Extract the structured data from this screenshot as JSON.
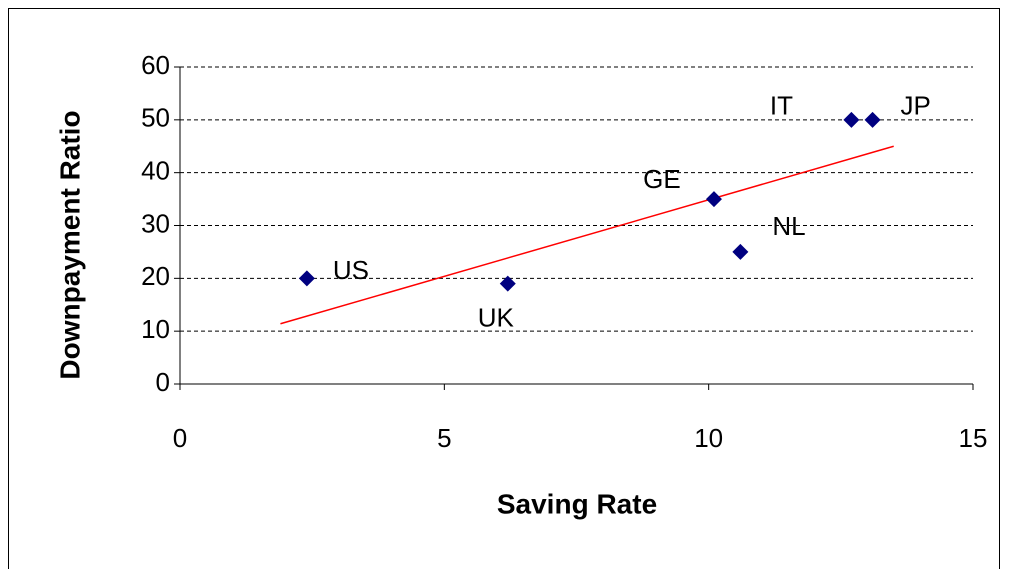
{
  "chart_data": {
    "type": "scatter",
    "xlabel": "Saving Rate",
    "ylabel": "Downpayment Ratio",
    "series": [
      {
        "color": "#000080",
        "labels": [
          "US",
          "UK",
          "GE",
          "NL",
          "IT",
          "JP"
        ],
        "x": [
          2.4,
          6.2,
          10.1,
          10.6,
          12.7,
          13.1
        ],
        "values": [
          20,
          19,
          35,
          25,
          50,
          50
        ]
      }
    ],
    "trendline": {
      "color": "#ff0000",
      "x": [
        1.9,
        13.5
      ],
      "values": [
        11.4,
        45
      ]
    },
    "xlim": [
      0,
      15
    ],
    "xticks": [
      0,
      5,
      10,
      15
    ],
    "ylim": [
      0,
      60
    ],
    "yticks": [
      0,
      10,
      20,
      30,
      40,
      50,
      60
    ],
    "grid": true
  }
}
